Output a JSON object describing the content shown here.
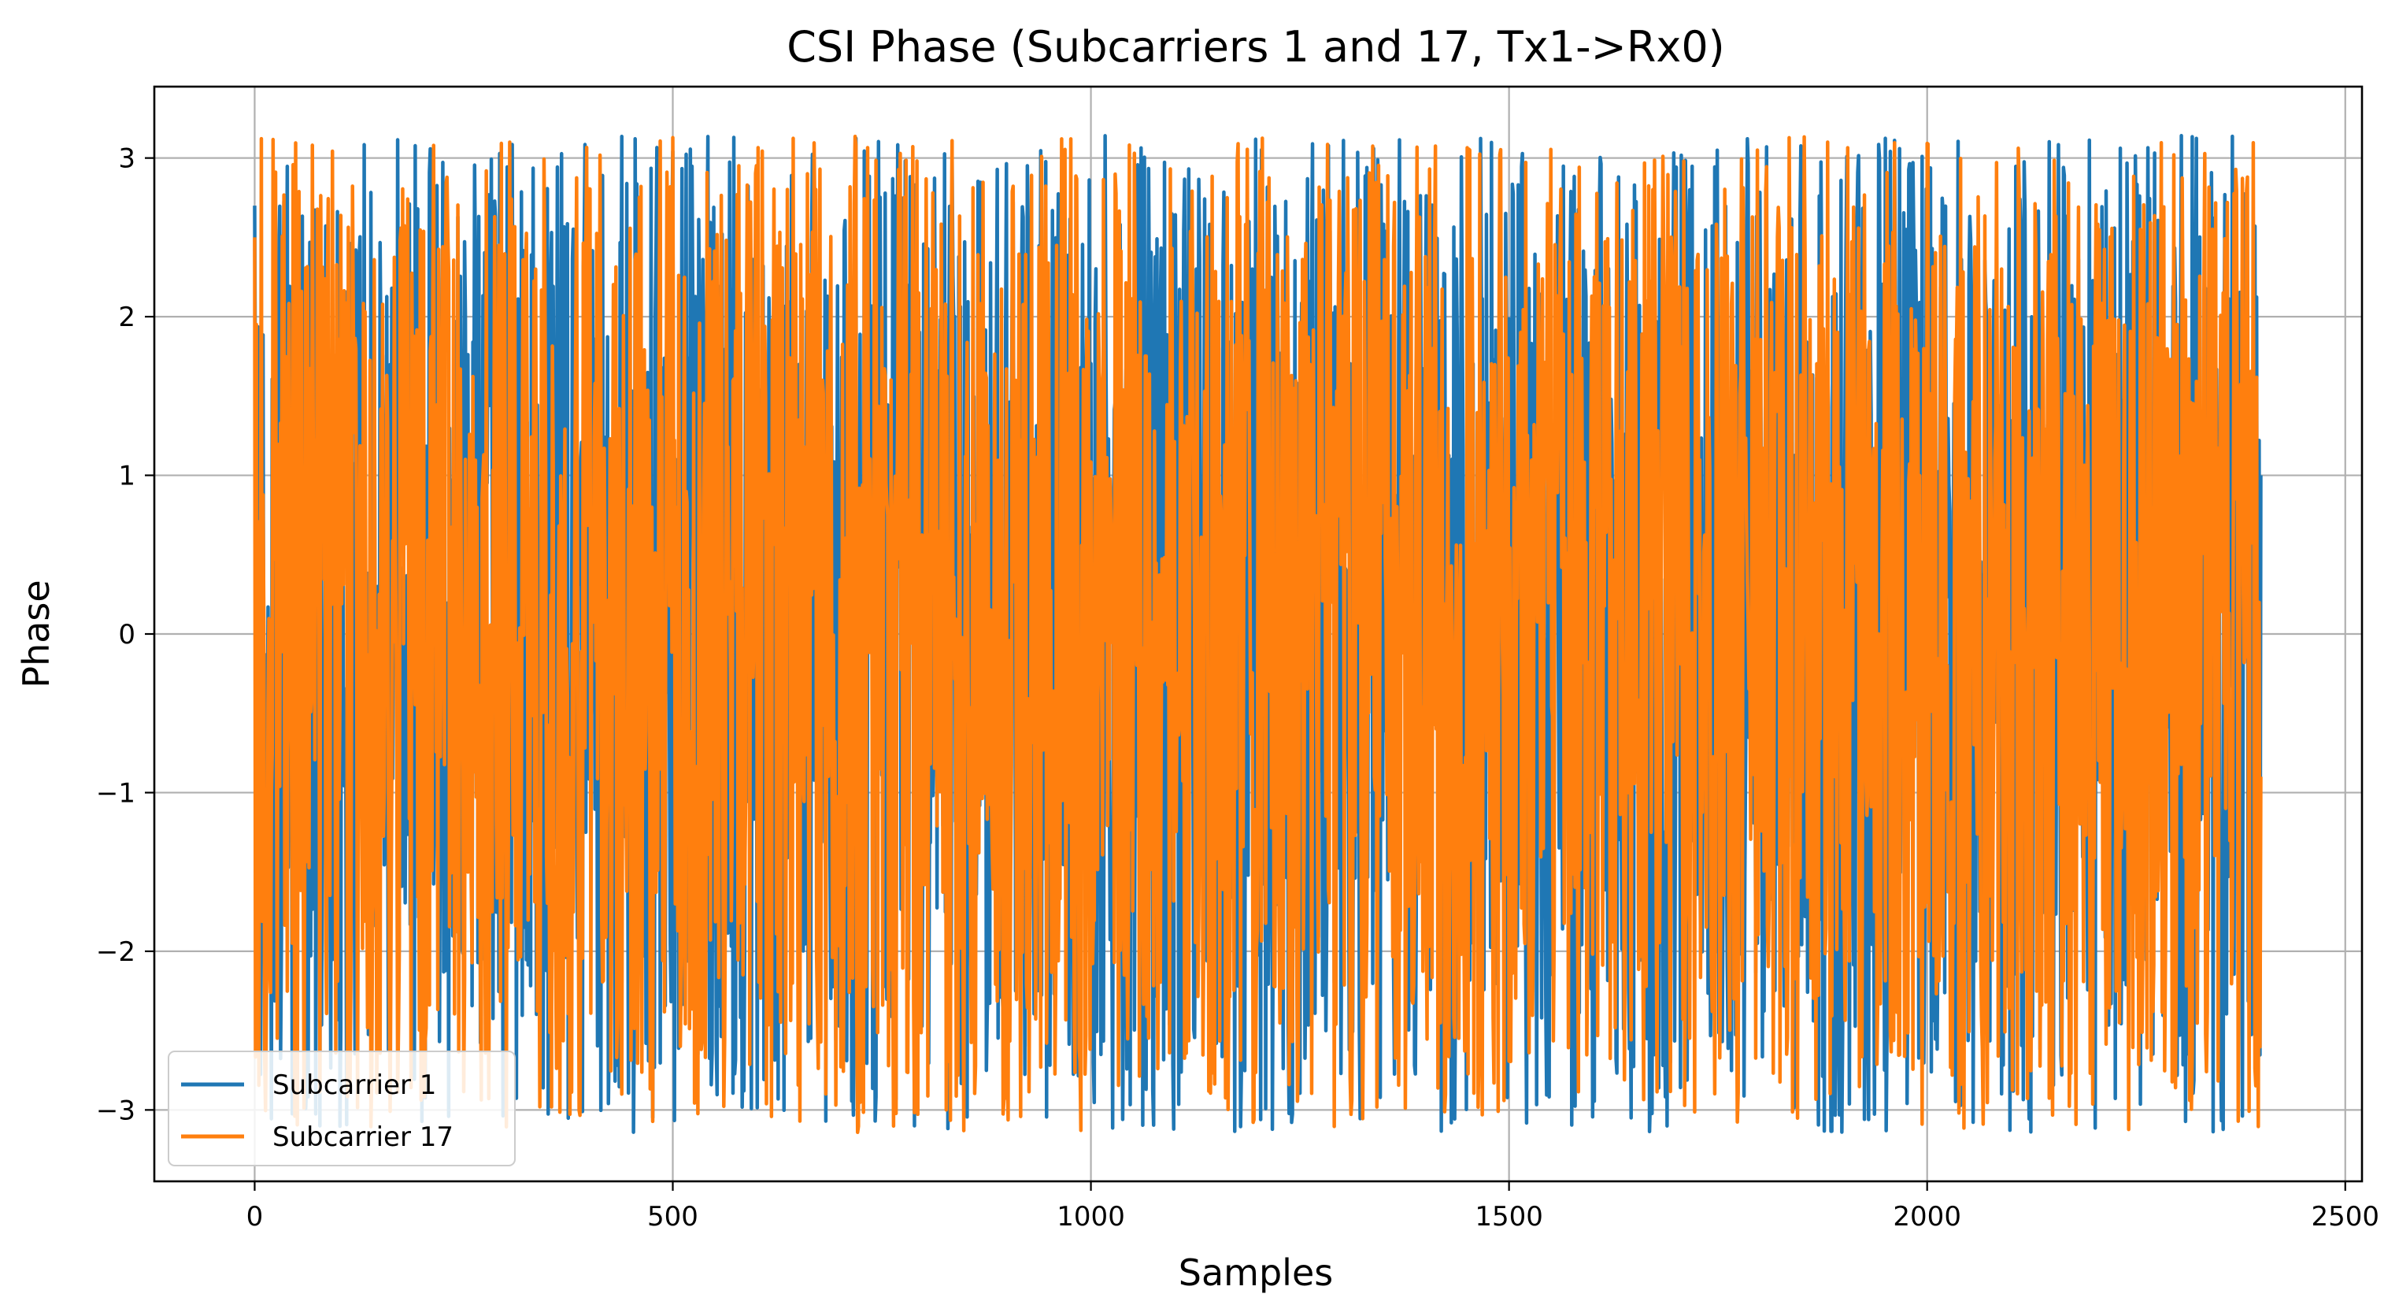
{
  "chart_data": {
    "type": "line",
    "title": "CSI Phase (Subcarriers 1 and 17, Tx1->Rx0)",
    "xlabel": "Samples",
    "ylabel": "Phase",
    "xlim": [
      -120,
      2520
    ],
    "ylim": [
      -3.45,
      3.45
    ],
    "xticks": [
      0,
      500,
      1000,
      1500,
      2000,
      2500
    ],
    "xtick_labels": [
      "0",
      "500",
      "1000",
      "1500",
      "2000",
      "2500"
    ],
    "yticks": [
      -3,
      -2,
      -1,
      0,
      1,
      2,
      3
    ],
    "ytick_labels": [
      "−3",
      "−2",
      "−1",
      "0",
      "1",
      "2",
      "3"
    ],
    "grid": true,
    "legend_position": "lower-left",
    "sample_count": 2400,
    "value_range": [
      -3.1416,
      3.1416
    ],
    "series": [
      {
        "name": "Subcarrier 1",
        "color": "#1f77b4",
        "seed": 7919,
        "start": 2.7,
        "end": 1.0
      },
      {
        "name": "Subcarrier 17",
        "color": "#ff7f0e",
        "seed": 104729,
        "start": 2.5,
        "end": -0.9
      }
    ]
  }
}
